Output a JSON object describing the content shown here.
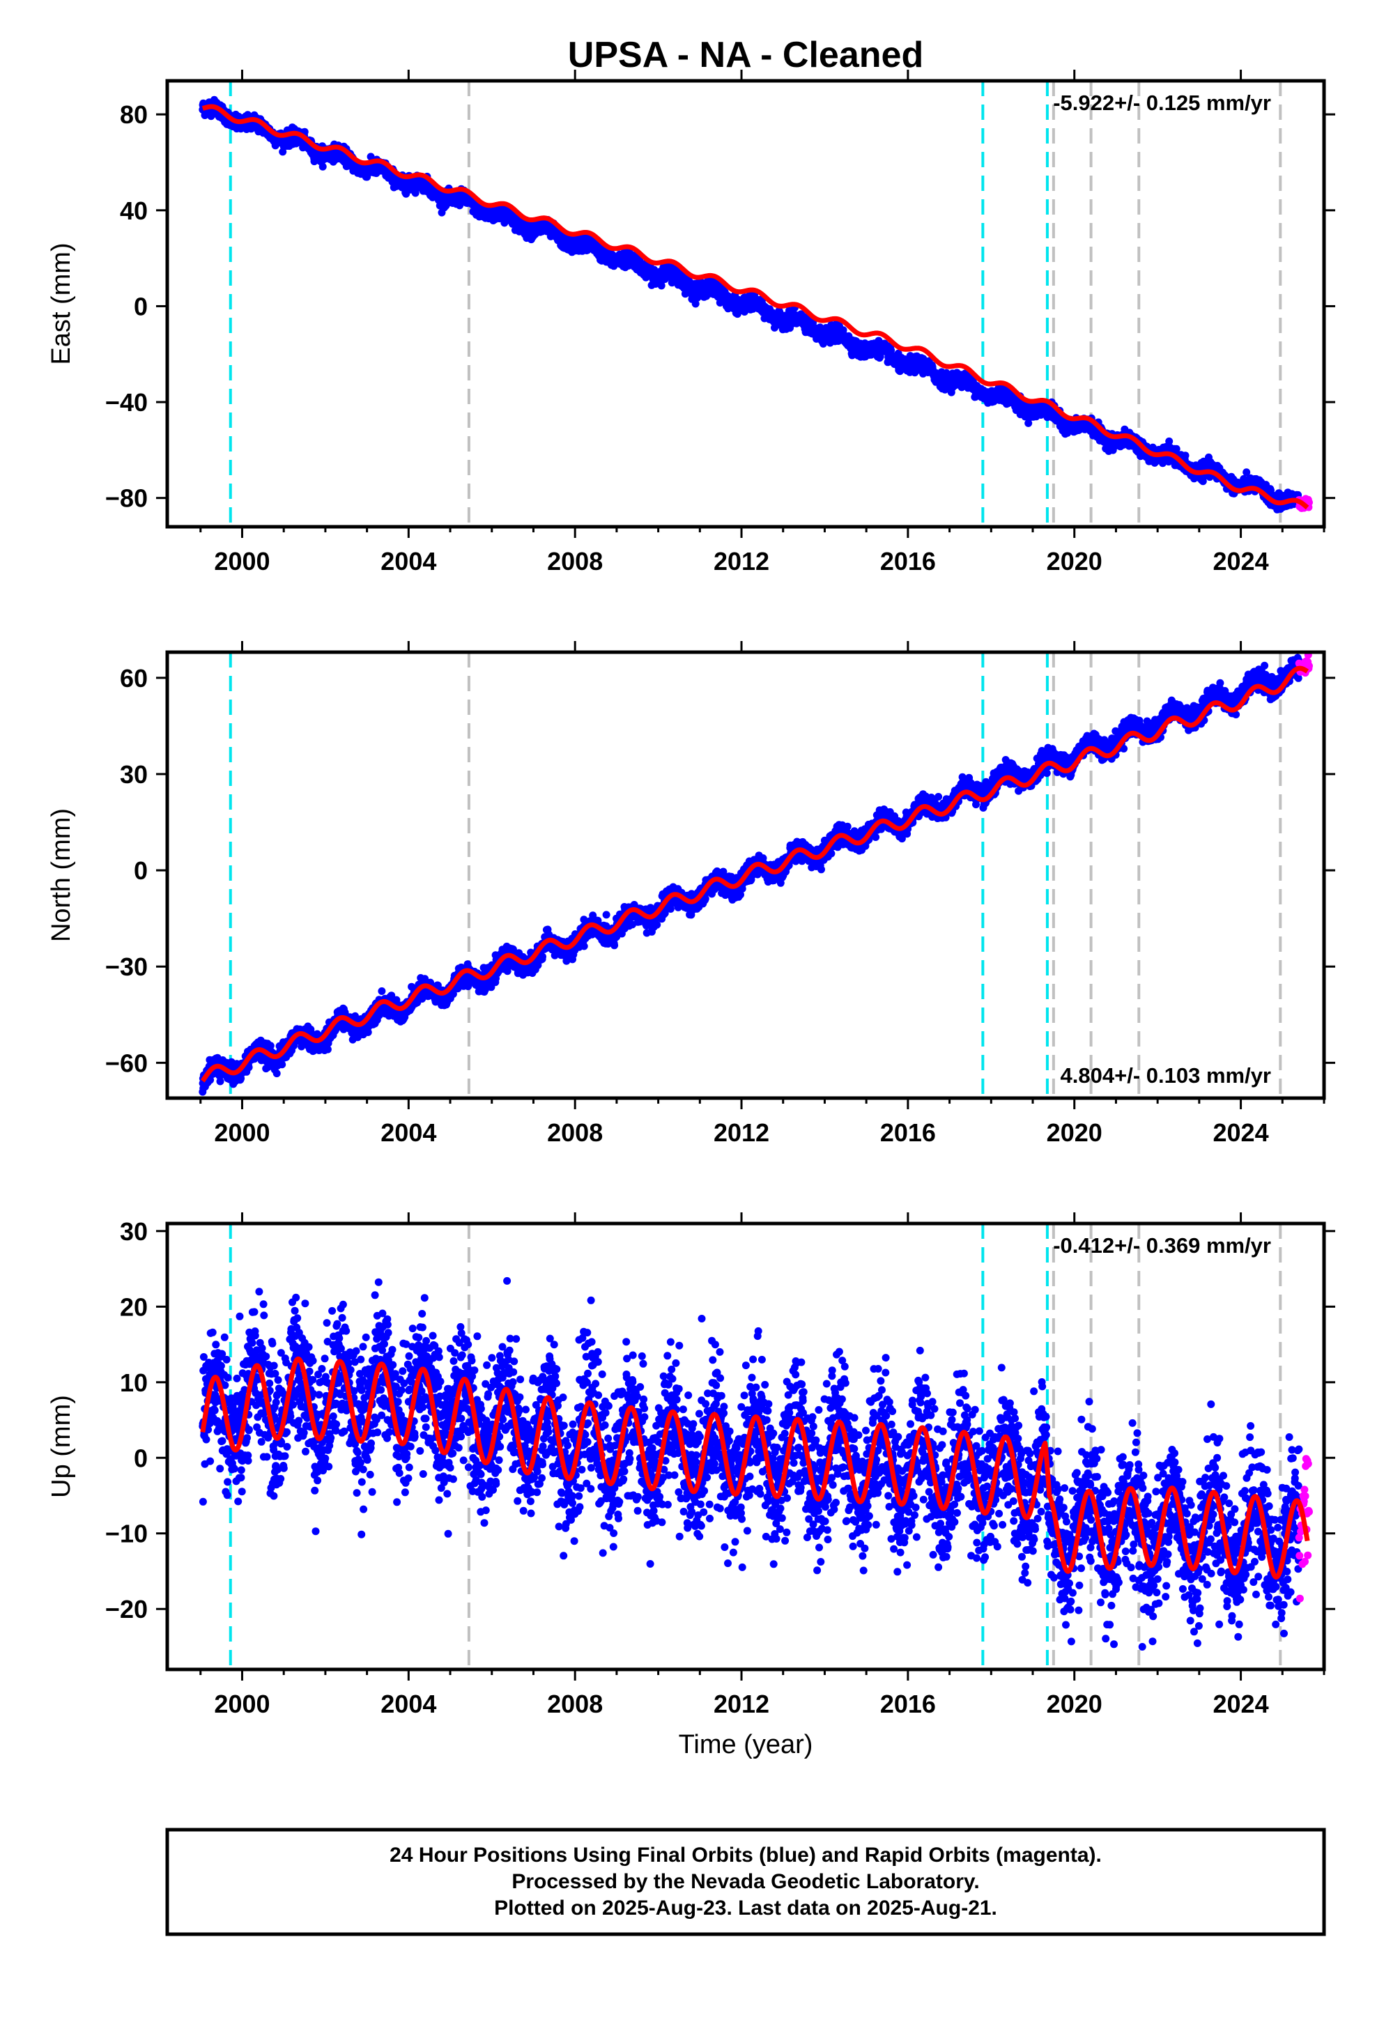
{
  "title": "UPSA  - NA - Cleaned",
  "xlabel": "Time (year)",
  "x_ticks": [
    2000,
    2004,
    2008,
    2012,
    2016,
    2020,
    2024
  ],
  "x_range": [
    1998.2,
    2026.0
  ],
  "equipment_changes": [
    1999.72,
    2017.8,
    2019.35
  ],
  "other_events": [
    2005.45,
    2019.5,
    2020.4,
    2021.55,
    2024.95
  ],
  "colors": {
    "final_orbits": "#0000ff",
    "rapid_orbits": "#ff00ff",
    "model": "#ff0000",
    "equipment_line": "#00e5ee",
    "other_line": "#c0c0c0"
  },
  "footer": {
    "line1": "24 Hour Positions Using Final Orbits (blue) and Rapid Orbits (magenta).",
    "line2": "Processed by the Nevada Geodetic Laboratory.",
    "line3": "Plotted on 2025-Aug-23. Last data on 2025-Aug-21."
  },
  "chart_data": [
    {
      "type": "scatter",
      "ylabel": "East (mm)",
      "ylim": [
        -92,
        94
      ],
      "y_ticks": [
        80,
        40,
        0,
        -40,
        -80
      ],
      "rate_text": "-5.922+/- 0.125 mm/yr",
      "rate_position": "top-right",
      "series": [
        {
          "name": "Final Orbits (blue)",
          "x_range": [
            1999.05,
            2025.4
          ],
          "trend": "linear",
          "start_value": 83,
          "end_value": -83,
          "seasonal_amplitude": 1.8,
          "scatter": 1.5
        },
        {
          "name": "Rapid Orbits (magenta)",
          "x_range": [
            2025.4,
            2025.64
          ],
          "start_value": -83,
          "end_value": -82
        },
        {
          "name": "Model",
          "x": [
            1999.05,
            2000,
            2004,
            2008,
            2012,
            2016,
            2020,
            2024,
            2025.6
          ],
          "values": [
            83,
            78,
            55,
            31,
            7,
            -17,
            -46,
            -76,
            -84
          ]
        }
      ]
    },
    {
      "type": "scatter",
      "ylabel": "North (mm)",
      "ylim": [
        -71,
        68
      ],
      "y_ticks": [
        60,
        30,
        0,
        -30,
        -60
      ],
      "rate_text": "4.804+/- 0.103 mm/yr",
      "rate_position": "bottom-right",
      "series": [
        {
          "name": "Final Orbits (blue)",
          "x_range": [
            1999.05,
            2025.4
          ],
          "trend": "linear",
          "start_value": -65,
          "end_value": 62,
          "seasonal_amplitude": 2.5,
          "scatter": 1.5
        },
        {
          "name": "Rapid Orbits (magenta)",
          "x_range": [
            2025.4,
            2025.64
          ],
          "start_value": 62,
          "end_value": 64
        },
        {
          "name": "Model",
          "x": [
            1999.05,
            2000,
            2004,
            2008,
            2012,
            2016,
            2020,
            2024,
            2025.6
          ],
          "values": [
            -65,
            -60,
            -40,
            -21,
            -2,
            16,
            34,
            53,
            62
          ]
        }
      ]
    },
    {
      "type": "scatter",
      "ylabel": "Up (mm)",
      "ylim": [
        -28,
        31
      ],
      "y_ticks": [
        30,
        20,
        10,
        0,
        -10,
        -20
      ],
      "rate_text": "-0.412+/- 0.369 mm/yr",
      "rate_position": "top-right",
      "series": [
        {
          "name": "Final Orbits (blue)",
          "x_range": [
            1999.05,
            2025.4
          ],
          "x": [
            1999.05,
            2001,
            2004,
            2007,
            2010,
            2013,
            2016,
            2019.3,
            2019.4,
            2022,
            2025.4
          ],
          "values": [
            5,
            8,
            8,
            3,
            1,
            0,
            -1,
            -3,
            -10,
            -9,
            -11
          ],
          "scatter": 4.5
        },
        {
          "name": "Rapid Orbits (magenta)",
          "x_range": [
            2025.4,
            2025.64
          ],
          "start_value": -10,
          "end_value": -5
        },
        {
          "name": "Model",
          "seasonal_amplitude_range": [
            4.5,
            6.0
          ],
          "x": [
            1999.05,
            2001,
            2004,
            2007,
            2010,
            2013,
            2016,
            2019.3,
            2019.4,
            2022,
            2025.6
          ],
          "values": [
            5,
            8,
            7,
            3,
            1,
            0,
            -1,
            -3,
            -10,
            -9,
            -11
          ]
        }
      ]
    }
  ]
}
